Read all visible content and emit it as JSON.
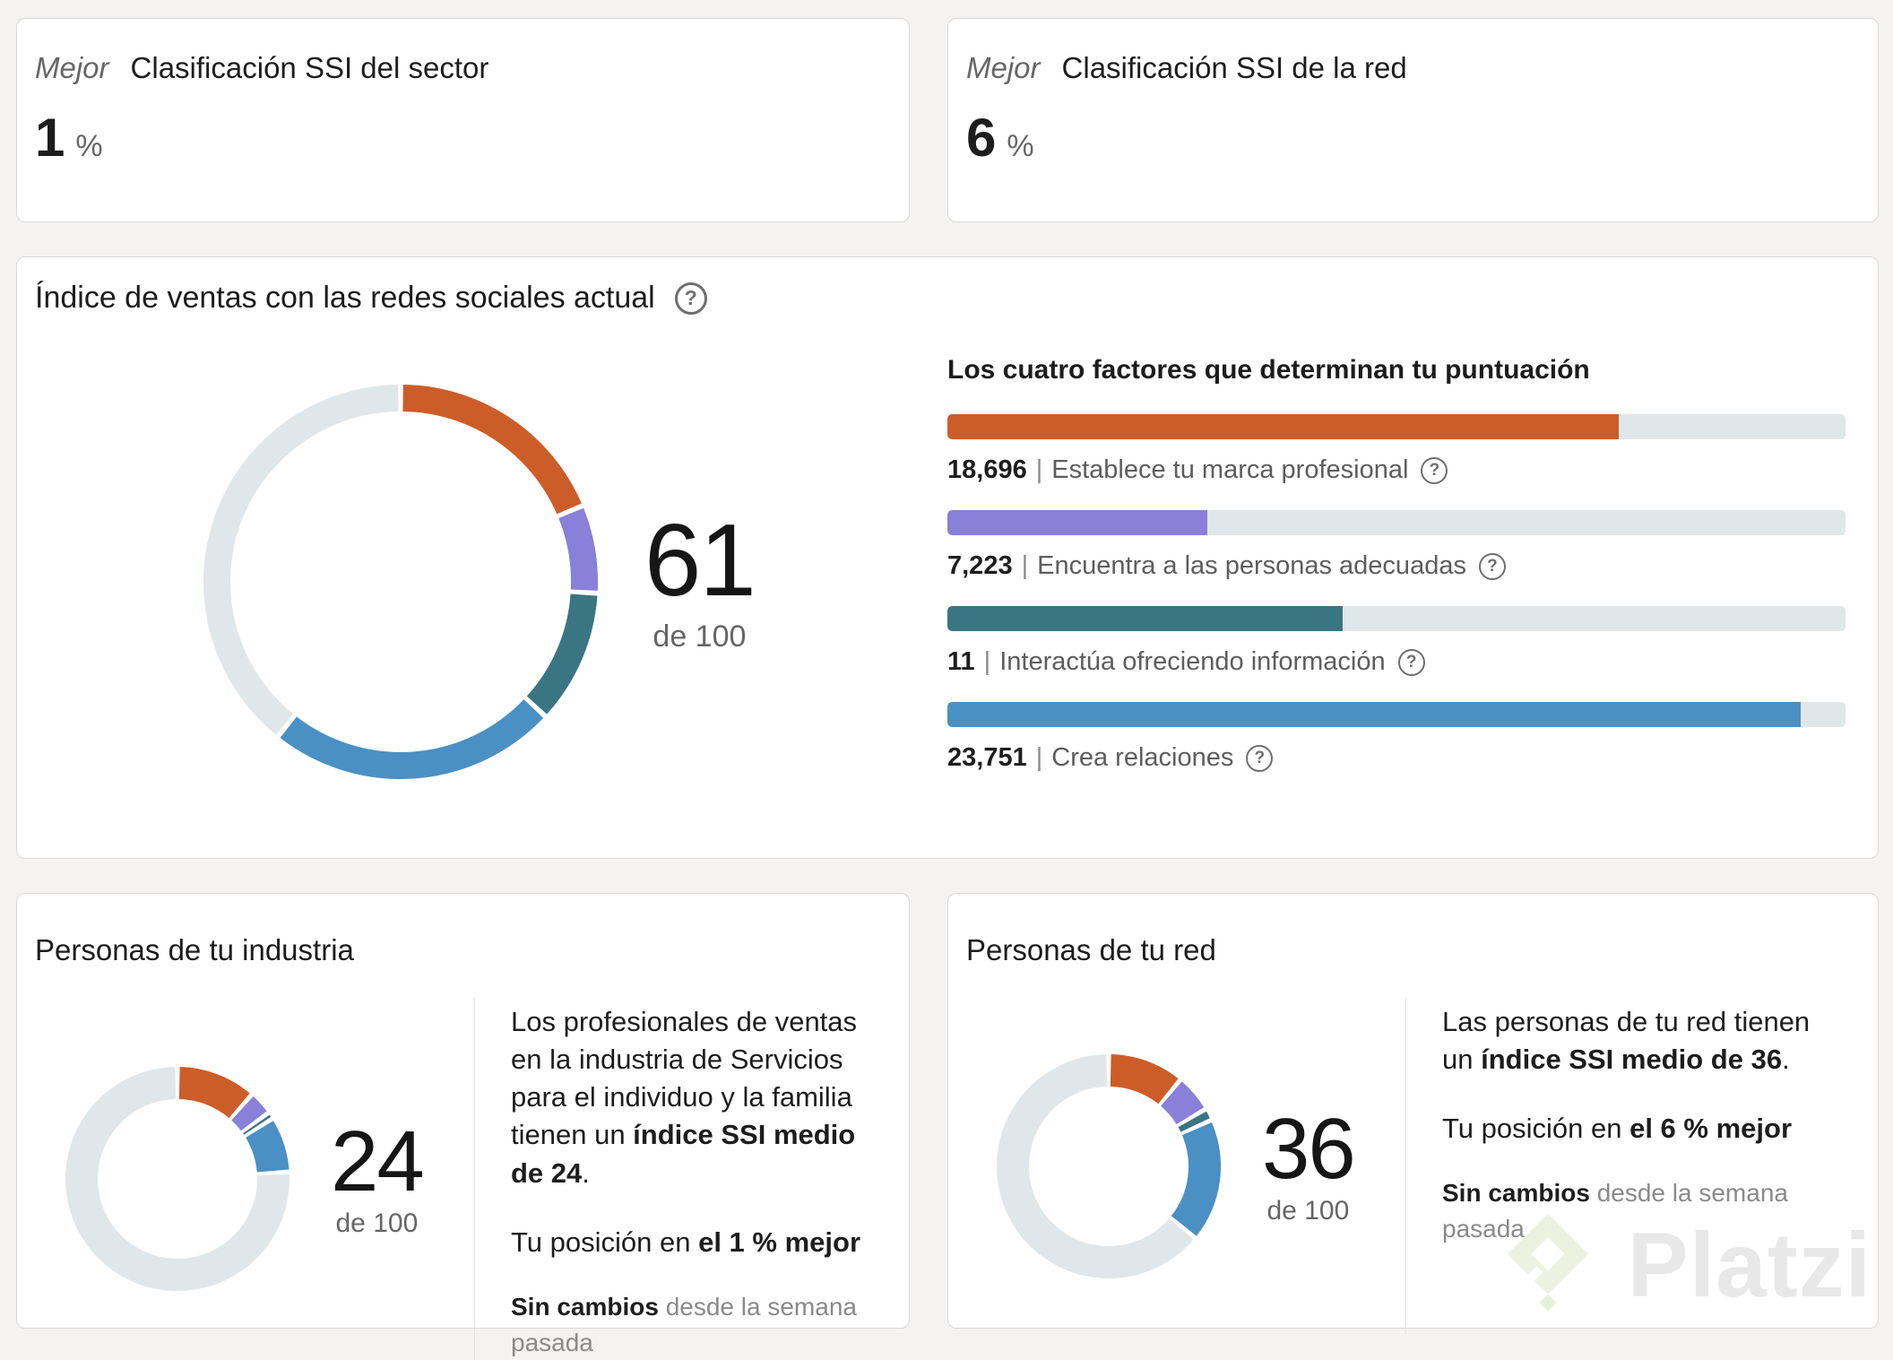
{
  "colors": {
    "orange": "#cd5d28",
    "purple": "#8a7fd9",
    "teal": "#3a7583",
    "blue": "#4a90c4",
    "track": "#e0e7ea"
  },
  "top_cards": [
    {
      "qualifier": "Mejor",
      "title": "Clasificación SSI del sector",
      "value": "1",
      "unit": "%"
    },
    {
      "qualifier": "Mejor",
      "title": "Clasificación SSI de la red",
      "value": "6",
      "unit": "%"
    }
  ],
  "ssi": {
    "title": "Índice de ventas con las redes sociales actual",
    "help_icon": "?",
    "score": "61",
    "score_of": "de 100",
    "factors_heading": "Los cuatro factores que determinan tu puntuación",
    "factors": [
      {
        "value": "18,696",
        "separator": "|",
        "label": "Establece tu marca profesional",
        "percent": 74.8,
        "color_key": "orange"
      },
      {
        "value": "7,223",
        "separator": "|",
        "label": "Encuentra a las personas adecuadas",
        "percent": 28.9,
        "color_key": "purple"
      },
      {
        "value": "11",
        "separator": "|",
        "label": "Interactúa ofreciendo información",
        "percent": 44,
        "color_key": "teal"
      },
      {
        "value": "23,751",
        "separator": "|",
        "label": "Crea relaciones",
        "percent": 95,
        "color_key": "blue"
      }
    ]
  },
  "industry": {
    "title": "Personas de tu industria",
    "score": "24",
    "score_of": "de 100",
    "description": {
      "lead": "Los profesionales de ventas en la industria de Servicios para el individuo y la familia tienen un ",
      "bold": "índice SSI medio de 24",
      "end": "."
    },
    "position": {
      "lead": "Tu posición en ",
      "bold": "el 1 % mejor"
    },
    "change": {
      "bold": "Sin cambios",
      "rest": " desde la semana pasada"
    }
  },
  "network": {
    "title": "Personas de tu red",
    "score": "36",
    "score_of": "de 100",
    "description": {
      "lead": "Las personas de tu red tienen un ",
      "bold": "índice SSI medio de 36",
      "end": "."
    },
    "position": {
      "lead": "Tu posición en ",
      "bold": "el 6 % mejor"
    },
    "change": {
      "bold": "Sin cambios",
      "rest": " desde la semana pasada"
    }
  },
  "watermark": {
    "label": "Platzi"
  },
  "chart_data": [
    {
      "type": "pie",
      "subtype": "donut",
      "title": "Índice de ventas con las redes sociales actual",
      "score": 61,
      "total": 100,
      "segments": [
        {
          "label": "Establece tu marca profesional",
          "value": 18.696,
          "color": "#cd5d28"
        },
        {
          "label": "Encuentra a las personas adecuadas",
          "value": 7.223,
          "color": "#8a7fd9"
        },
        {
          "label": "Interactúa ofreciendo información",
          "value": 11,
          "color": "#3a7583"
        },
        {
          "label": "Crea relaciones",
          "value": 23.751,
          "color": "#4a90c4"
        },
        {
          "label": "restante",
          "value": 39.33,
          "color": "#e0e7ea"
        }
      ]
    },
    {
      "type": "bar",
      "title": "Los cuatro factores que determinan tu puntuación",
      "categories": [
        "Establece tu marca profesional",
        "Encuentra a las personas adecuadas",
        "Interactúa ofreciendo información",
        "Crea relaciones"
      ],
      "values": [
        18.696,
        7.223,
        11,
        23.751
      ],
      "value_labels": [
        "18,696",
        "7,223",
        "11",
        "23,751"
      ],
      "max_per_bar": 25,
      "colors": [
        "#cd5d28",
        "#8a7fd9",
        "#3a7583",
        "#4a90c4"
      ]
    },
    {
      "type": "pie",
      "subtype": "donut",
      "title": "Personas de tu industria",
      "score": 24,
      "total": 100,
      "segments": [
        {
          "label": "Establece tu marca profesional",
          "value": 11.5,
          "color": "#cd5d28"
        },
        {
          "label": "Encuentra a las personas adecuadas",
          "value": 3.5,
          "color": "#8a7fd9"
        },
        {
          "label": "Interactúa ofreciendo información",
          "value": 1,
          "color": "#3a7583"
        },
        {
          "label": "Crea relaciones",
          "value": 8,
          "color": "#4a90c4"
        },
        {
          "label": "restante",
          "value": 76,
          "color": "#e0e7ea"
        }
      ]
    },
    {
      "type": "pie",
      "subtype": "donut",
      "title": "Personas de tu red",
      "score": 36,
      "total": 100,
      "segments": [
        {
          "label": "Establece tu marca profesional",
          "value": 11,
          "color": "#cd5d28"
        },
        {
          "label": "Encuentra a las personas adecuadas",
          "value": 5.5,
          "color": "#8a7fd9"
        },
        {
          "label": "Interactúa ofreciendo información",
          "value": 1.75,
          "color": "#3a7583"
        },
        {
          "label": "Crea relaciones",
          "value": 17.75,
          "color": "#4a90c4"
        },
        {
          "label": "restante",
          "value": 64,
          "color": "#e0e7ea"
        }
      ]
    }
  ]
}
